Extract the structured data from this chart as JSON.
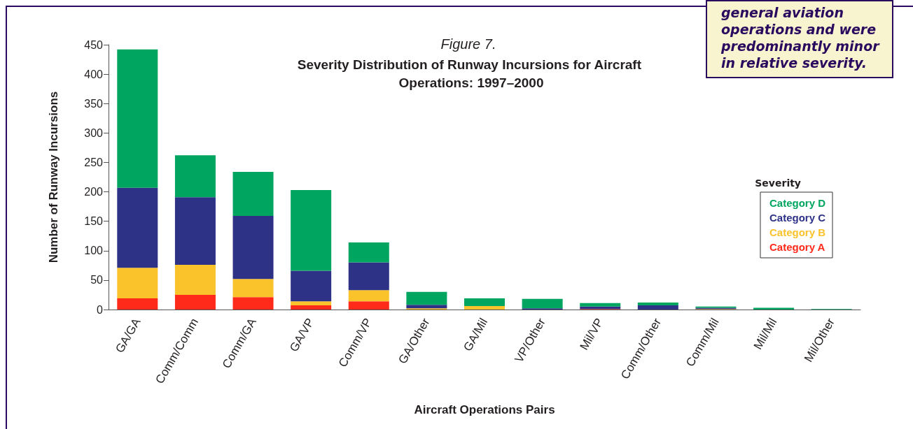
{
  "chart_data": {
    "type": "bar",
    "stacked": true,
    "title": "Figure 7.",
    "subtitle": "Severity Distribution of Runway Incursions for Aircraft Operations: 1997–2000",
    "xlabel": "Aircraft Operations Pairs",
    "ylabel": "Number of Runway Incursions",
    "legend_title": "Severity",
    "legend": "right",
    "annotations": [
      "general aviation operations and were predominantly minor in relative severity."
    ],
    "categories": [
      "GA/GA",
      "Comm/Comm",
      "Comm/GA",
      "GA/VP",
      "Comm/VP",
      "GA/Other",
      "GA/Mil",
      "VP/Other",
      "Mil/VP",
      "Comm/Other",
      "Comm/Mil",
      "Mil/Mil",
      "Mil/Other"
    ],
    "series": [
      {
        "name": "Category A",
        "color": "#ff2a1a",
        "values": [
          19,
          25,
          21,
          7,
          14,
          0,
          0,
          0,
          1,
          0,
          0,
          0,
          0
        ]
      },
      {
        "name": "Category B",
        "color": "#fac22b",
        "values": [
          52,
          51,
          31,
          7,
          19,
          2,
          6,
          0,
          0,
          0,
          1,
          0,
          0
        ]
      },
      {
        "name": "Category C",
        "color": "#2e3287",
        "values": [
          136,
          115,
          107,
          52,
          47,
          6,
          0,
          2,
          4,
          7,
          2,
          0,
          0
        ]
      },
      {
        "name": "Category D",
        "color": "#00a560",
        "values": [
          235,
          71,
          75,
          137,
          34,
          22,
          13,
          16,
          6,
          5,
          2,
          3,
          1
        ]
      }
    ],
    "ylim": [
      0,
      450
    ],
    "yticks": [
      0,
      50,
      100,
      150,
      200,
      250,
      300,
      350,
      400,
      450
    ],
    "grid": false
  }
}
